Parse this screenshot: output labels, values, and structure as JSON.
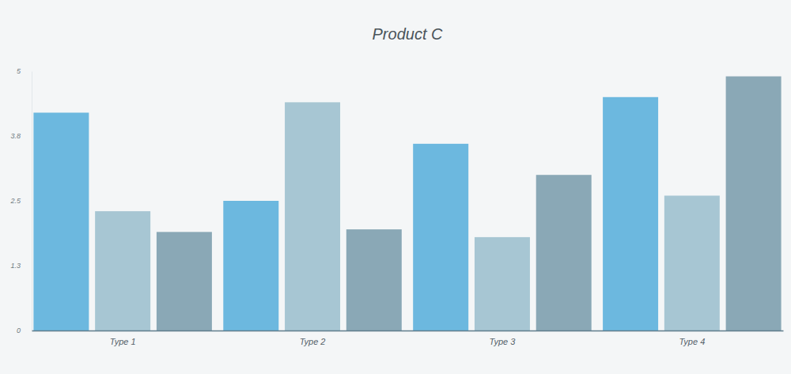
{
  "chart_data": {
    "type": "bar",
    "title": "Product C",
    "categories": [
      "Type 1",
      "Type 2",
      "Type 3",
      "Type 4"
    ],
    "series": [
      {
        "color": "#6cb8df",
        "values": [
          4.2,
          2.5,
          3.6,
          4.5
        ]
      },
      {
        "color": "#a7c6d3",
        "values": [
          2.3,
          4.4,
          1.8,
          2.6
        ]
      },
      {
        "color": "#8aa8b6",
        "values": [
          1.9,
          1.95,
          3.0,
          4.9
        ]
      }
    ],
    "ylim": [
      0,
      5
    ],
    "yticks": [
      0,
      {
        "value": 1.25,
        "label": "1.3"
      },
      2.5,
      {
        "value": 3.75,
        "label": "3.8"
      },
      5
    ],
    "grid": false
  }
}
